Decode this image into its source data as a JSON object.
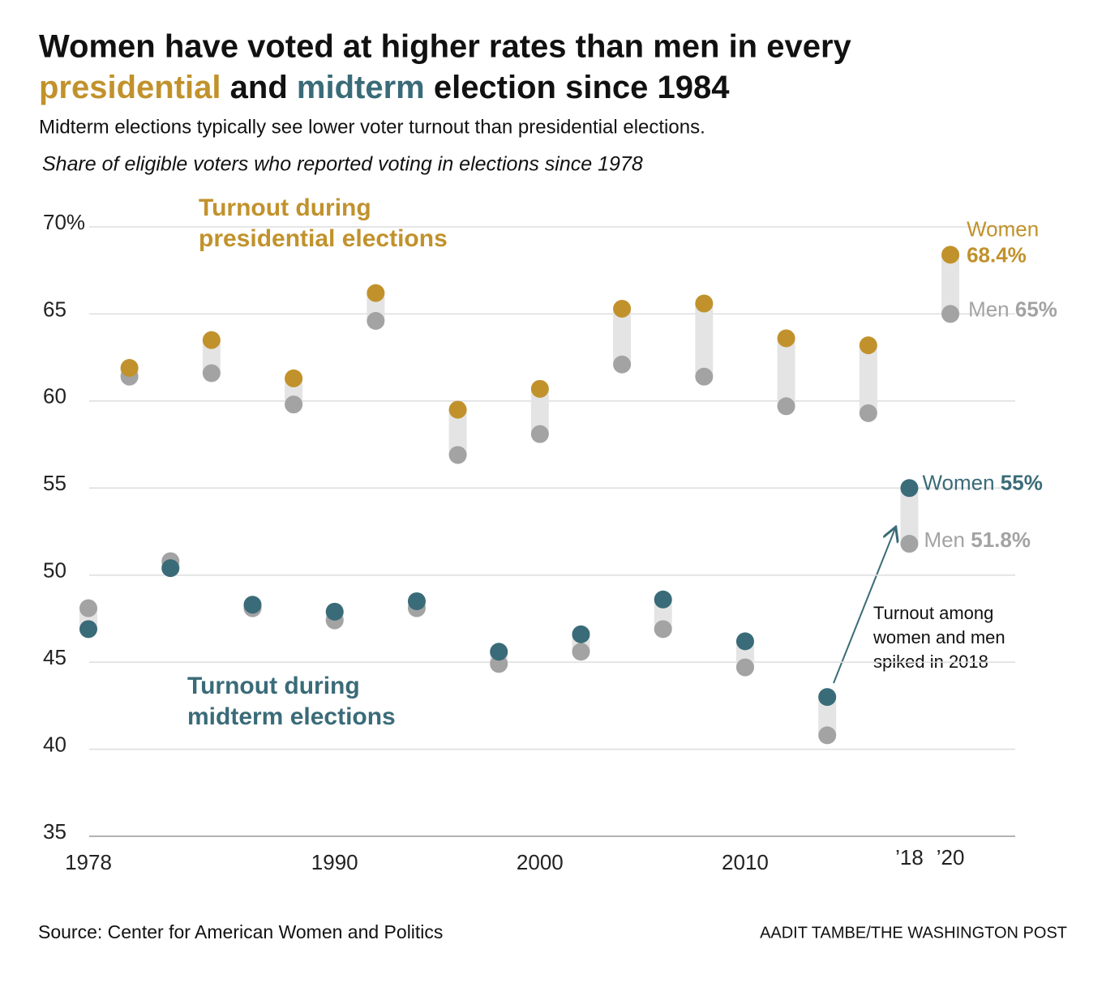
{
  "chart_data": {
    "type": "dot",
    "title": [
      "Women have voted at higher rates than men in every",
      "presidential",
      "and",
      "midterm",
      "election since 1984"
    ],
    "subtitle": "Midterm elections typically see lower voter turnout than presidential elections.",
    "description": "Share of eligible voters who reported voting in elections since 1978",
    "xlim": [
      1978,
      2023
    ],
    "xticks": [
      1978,
      1990,
      2000,
      2010,
      {
        "value": 2018,
        "label": "’18"
      },
      {
        "value": 2020,
        "label": "’20"
      }
    ],
    "ylim": [
      35,
      70
    ],
    "yticks": [
      35,
      40,
      45,
      50,
      55,
      60,
      65,
      {
        "value": 70,
        "label": "70%"
      }
    ],
    "grid": true,
    "series": [
      {
        "name": "Women",
        "color": "#c1922c",
        "x": [
          1980,
          1984,
          1988,
          1992,
          1996,
          2000,
          2004,
          2008,
          2012,
          2016,
          2020
        ],
        "values": [
          61.9,
          63.5,
          61.3,
          66.2,
          59.5,
          60.7,
          65.3,
          65.6,
          63.6,
          63.2,
          68.4
        ],
        "value_labels": [
          null,
          null,
          null,
          null,
          null,
          null,
          null,
          null,
          null,
          null,
          "68.4%"
        ]
      },
      {
        "name": "Men",
        "color": "#a3a3a3",
        "x": [
          1980,
          1984,
          1988,
          1992,
          1996,
          2000,
          2004,
          2008,
          2012,
          2016,
          2020
        ],
        "values": [
          61.4,
          61.6,
          59.8,
          64.6,
          56.9,
          58.1,
          62.1,
          61.4,
          59.7,
          59.3,
          65
        ],
        "value_labels": [
          null,
          null,
          null,
          null,
          null,
          null,
          null,
          null,
          null,
          null,
          "65%"
        ]
      },
      {
        "name": "Women",
        "color": "#3a6b78",
        "x": [
          1978,
          1982,
          1986,
          1990,
          1994,
          1998,
          2002,
          2006,
          2010,
          2014,
          2018
        ],
        "values": [
          46.9,
          50.4,
          48.3,
          47.9,
          48.5,
          45.6,
          46.6,
          48.6,
          46.2,
          43.0,
          55
        ],
        "value_labels": [
          null,
          null,
          null,
          null,
          null,
          null,
          null,
          null,
          null,
          null,
          "55%"
        ]
      },
      {
        "name": "Men",
        "color": "#a3a3a3",
        "x": [
          1978,
          1982,
          1986,
          1990,
          1994,
          1998,
          2002,
          2006,
          2010,
          2014,
          2018
        ],
        "values": [
          48.1,
          50.8,
          48.1,
          47.4,
          48.1,
          44.9,
          45.6,
          46.9,
          44.7,
          40.8,
          51.8
        ],
        "value_labels": [
          null,
          null,
          null,
          null,
          null,
          null,
          null,
          null,
          null,
          null,
          "51.8%"
        ]
      }
    ],
    "group_labels": [
      [
        "Turnout during",
        "presidential elections"
      ],
      [
        "Turnout during",
        "midterm elections"
      ]
    ],
    "annotation": [
      "Turnout among",
      "women and men",
      "spiked in 2018"
    ],
    "source": "Source: Center for American Women and Politics",
    "credit": "AADIT TAMBE/THE WASHINGTON POST"
  }
}
